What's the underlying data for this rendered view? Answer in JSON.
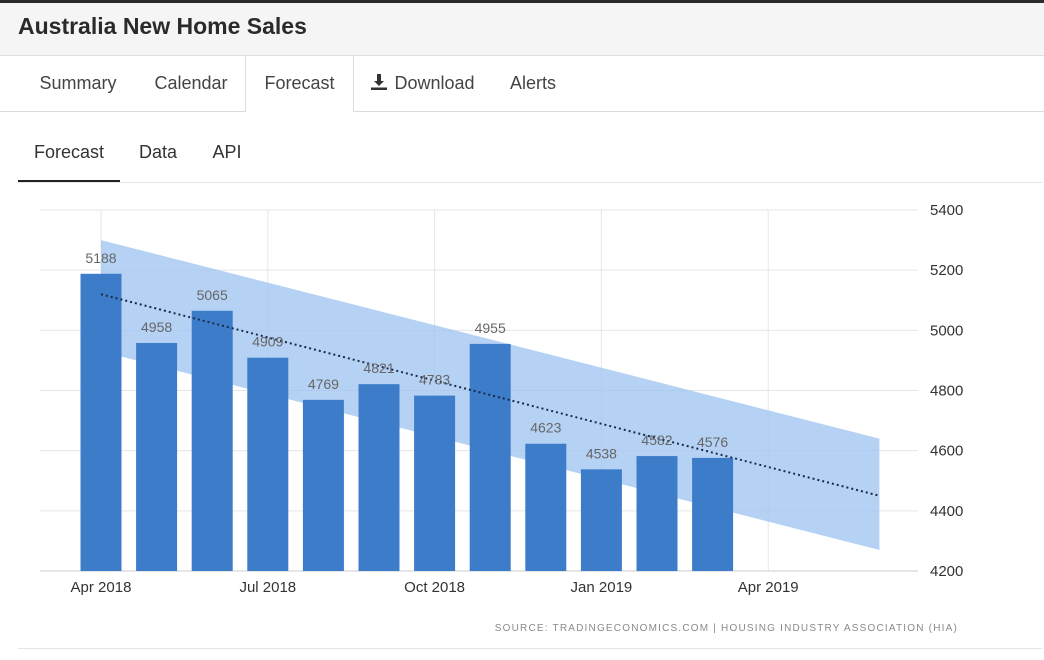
{
  "page": {
    "title": "Australia New Home Sales"
  },
  "tabs": [
    {
      "label": "Summary"
    },
    {
      "label": "Calendar"
    },
    {
      "label": "Forecast",
      "active": true
    },
    {
      "label": "Download",
      "icon": "download-icon"
    },
    {
      "label": "Alerts"
    }
  ],
  "subtabs": [
    {
      "label": "Forecast",
      "active": true
    },
    {
      "label": "Data"
    },
    {
      "label": "API"
    }
  ],
  "colors": {
    "bar": "#3d7cc9",
    "band": "#9cc3f2",
    "forecast_line": "#1a2a4a",
    "grid": "#e6e6e6"
  },
  "chart_data": {
    "type": "bar",
    "source": "SOURCE: TRADINGECONOMICS.COM | HOUSING INDUSTRY ASSOCIATION (HIA)",
    "ylim": [
      4200,
      5400
    ],
    "y_ticks": [
      5400,
      5200,
      5000,
      4800,
      4600,
      4400,
      4200
    ],
    "x_ticks": [
      "Apr 2018",
      "Jul 2018",
      "Oct 2018",
      "Jan 2019",
      "Apr 2019"
    ],
    "bars": [
      {
        "month": "2018-04",
        "value": 5188,
        "label": "5188"
      },
      {
        "month": "2018-05",
        "value": 4958,
        "label": "4958"
      },
      {
        "month": "2018-06",
        "value": 5065,
        "label": "5065"
      },
      {
        "month": "2018-07",
        "value": 4909,
        "label": "4909"
      },
      {
        "month": "2018-08",
        "value": 4769,
        "label": "4769"
      },
      {
        "month": "2018-09",
        "value": 4821,
        "label": "4821"
      },
      {
        "month": "2018-10",
        "value": 4783,
        "label": "4783"
      },
      {
        "month": "2018-11",
        "value": 4955,
        "label": "4955"
      },
      {
        "month": "2018-12",
        "value": 4623,
        "label": "4623"
      },
      {
        "month": "2019-01",
        "value": 4538,
        "label": "4538"
      },
      {
        "month": "2019-02",
        "value": 4582,
        "label": "4582"
      },
      {
        "month": "2019-03",
        "value": 4576,
        "label": "4576"
      }
    ],
    "forecast_trend": [
      {
        "month": "2018-04",
        "value": 5120
      },
      {
        "month": "2019-06",
        "value": 4450
      }
    ],
    "forecast_band": [
      {
        "month": "2018-04",
        "upper": 5300,
        "lower": 4930
      },
      {
        "month": "2019-06",
        "upper": 4640,
        "lower": 4270
      }
    ],
    "grid": true
  }
}
